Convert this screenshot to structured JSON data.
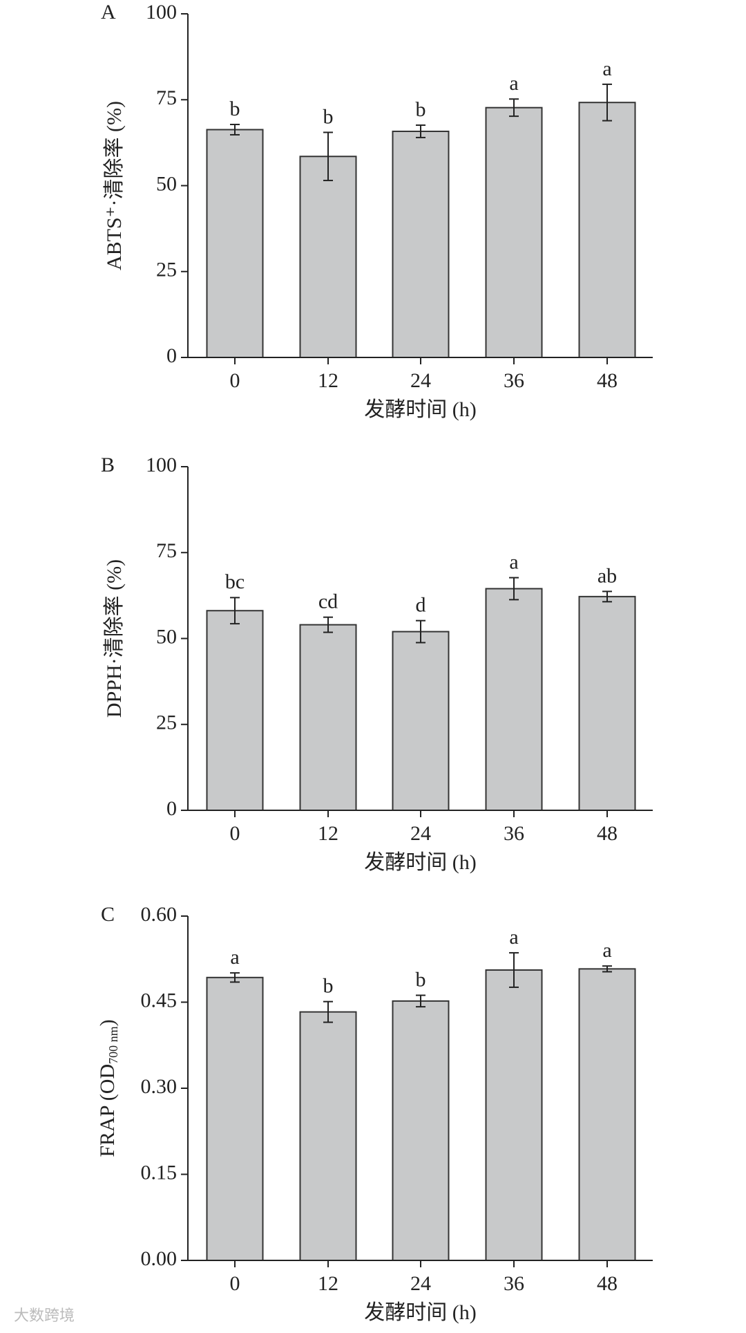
{
  "chart_data": [
    {
      "type": "bar",
      "panel": "A",
      "ylabel": "ABTS⁺·清除率 (%)",
      "xlabel": "发酵时间 (h)",
      "categories": [
        "0",
        "12",
        "24",
        "36",
        "48"
      ],
      "values": [
        66.3,
        58.5,
        65.8,
        72.7,
        74.2
      ],
      "errors": [
        1.5,
        7.0,
        1.8,
        2.5,
        5.3
      ],
      "letters": [
        "b",
        "b",
        "b",
        "a",
        "a"
      ],
      "color": "#c8c9ca",
      "ylim": [
        0,
        100
      ],
      "yticks": [
        0,
        25,
        50,
        75,
        100
      ]
    },
    {
      "type": "bar",
      "panel": "B",
      "ylabel": "DPPH·清除率 (%)",
      "xlabel": "发酵时间 (h)",
      "categories": [
        "0",
        "12",
        "24",
        "36",
        "48"
      ],
      "values": [
        58.1,
        54.0,
        52.0,
        64.5,
        62.2
      ],
      "errors": [
        3.8,
        2.2,
        3.2,
        3.2,
        1.5
      ],
      "letters": [
        "bc",
        "cd",
        "d",
        "a",
        "ab"
      ],
      "color": "#c8c9ca",
      "ylim": [
        0,
        100
      ],
      "yticks": [
        0,
        25,
        50,
        75,
        100
      ]
    },
    {
      "type": "bar",
      "panel": "C",
      "ylabel_parts": [
        {
          "text": "FRAP (OD"
        },
        {
          "text": "700 nm",
          "sub": true
        },
        {
          "text": ")"
        }
      ],
      "xlabel": "发酵时间 (h)",
      "categories": [
        "0",
        "12",
        "24",
        "36",
        "48"
      ],
      "values": [
        0.493,
        0.433,
        0.452,
        0.506,
        0.508
      ],
      "errors": [
        0.008,
        0.018,
        0.01,
        0.03,
        0.005
      ],
      "letters": [
        "a",
        "b",
        "b",
        "a",
        "a"
      ],
      "color": "#c8c9ca",
      "ylim": [
        0,
        0.6
      ],
      "yticks": [
        {
          "value": 0,
          "label": "0.00"
        },
        0.15,
        {
          "value": 0.3,
          "label": "0.30"
        },
        0.45,
        {
          "value": 0.6,
          "label": "0.60"
        }
      ]
    }
  ],
  "watermark": "大数跨境"
}
